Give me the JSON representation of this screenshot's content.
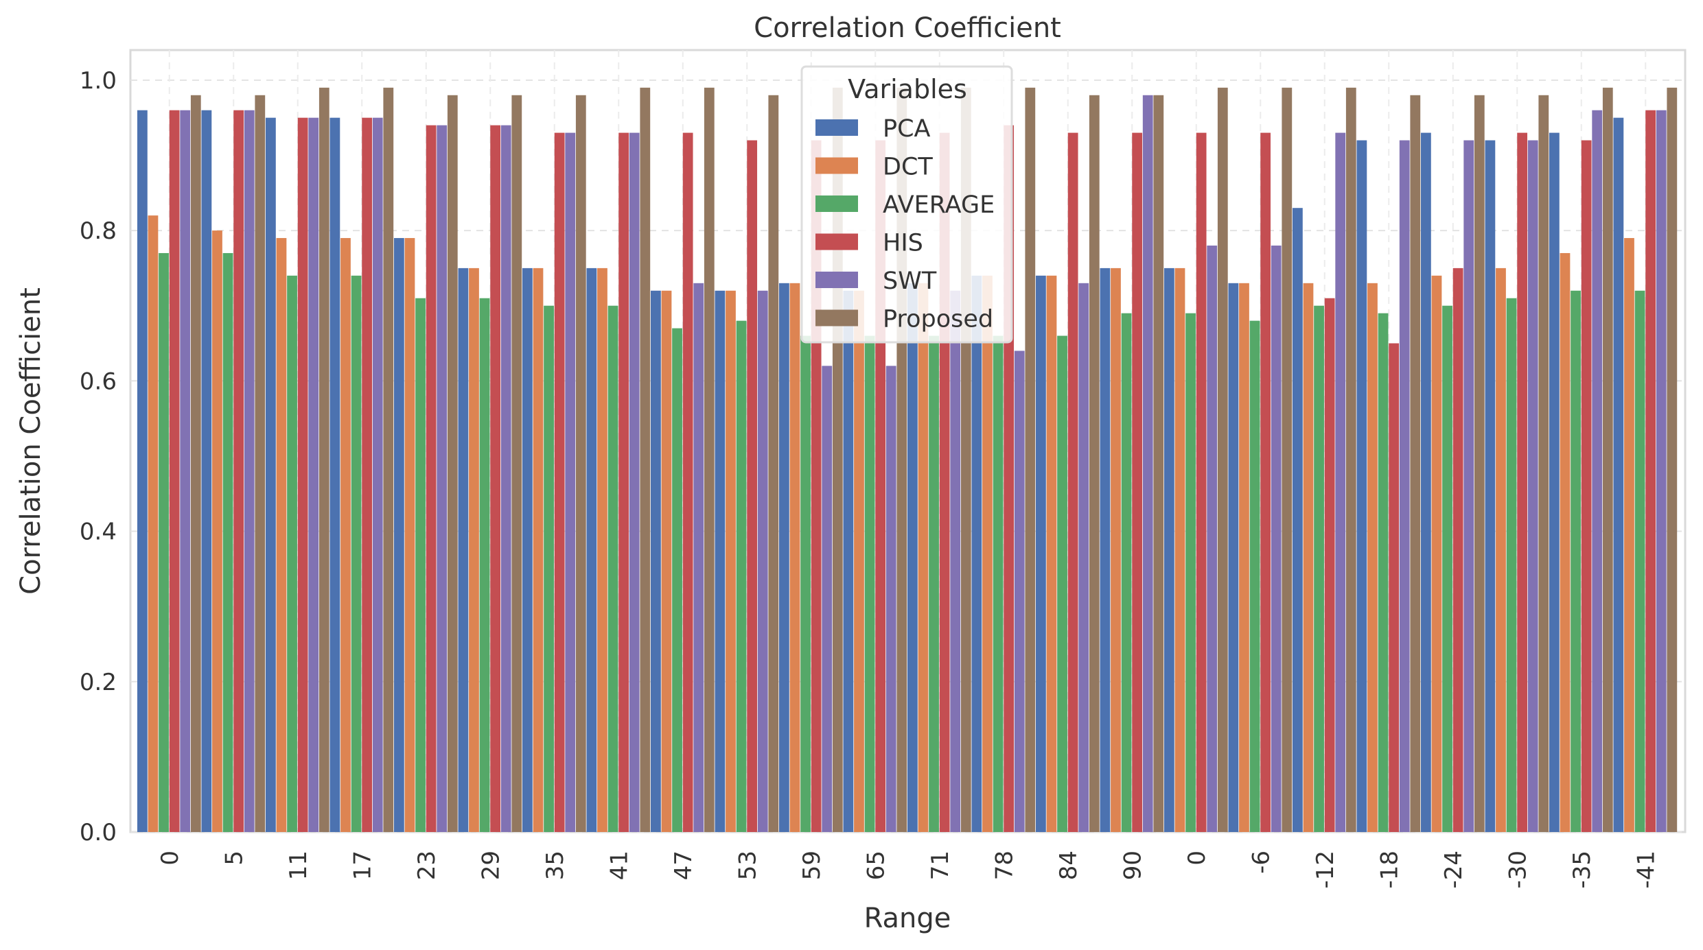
{
  "chart_data": {
    "type": "bar",
    "title": "Correlation Coefficient",
    "xlabel": "Range",
    "ylabel": "Correlation Coefficient",
    "ylim": [
      0,
      1.04
    ],
    "yticks": [
      "0.0",
      "0.2",
      "0.4",
      "0.6",
      "0.8",
      "1.0"
    ],
    "ytick_values": [
      0,
      0.2,
      0.4,
      0.6,
      0.8,
      1.0
    ],
    "grid": true,
    "legend": {
      "title": "Variables",
      "position": "upper-center"
    },
    "categories": [
      "0",
      "5",
      "11",
      "17",
      "23",
      "29",
      "35",
      "41",
      "47",
      "53",
      "59",
      "65",
      "71",
      "78",
      "84",
      "90",
      "0",
      "-6",
      "-12",
      "-18",
      "-24",
      "-30",
      "-35",
      "-41"
    ],
    "series": [
      {
        "name": "PCA",
        "color": "#4c72b0",
        "values": [
          0.96,
          0.96,
          0.95,
          0.95,
          0.79,
          0.75,
          0.75,
          0.75,
          0.72,
          0.72,
          0.73,
          0.72,
          0.73,
          0.74,
          0.74,
          0.75,
          0.75,
          0.73,
          0.83,
          0.92,
          0.93,
          0.92,
          0.93,
          0.95
        ]
      },
      {
        "name": "DCT",
        "color": "#dd8452",
        "values": [
          0.82,
          0.8,
          0.79,
          0.79,
          0.79,
          0.75,
          0.75,
          0.75,
          0.72,
          0.72,
          0.73,
          0.72,
          0.73,
          0.74,
          0.74,
          0.75,
          0.75,
          0.73,
          0.73,
          0.73,
          0.74,
          0.75,
          0.77,
          0.79
        ]
      },
      {
        "name": "AVERAGE",
        "color": "#55a868",
        "values": [
          0.77,
          0.77,
          0.74,
          0.74,
          0.71,
          0.71,
          0.7,
          0.7,
          0.67,
          0.68,
          0.66,
          0.66,
          0.66,
          0.66,
          0.66,
          0.69,
          0.69,
          0.68,
          0.7,
          0.69,
          0.7,
          0.71,
          0.72,
          0.72
        ]
      },
      {
        "name": "HIS",
        "color": "#c44e52",
        "values": [
          0.96,
          0.96,
          0.95,
          0.95,
          0.94,
          0.94,
          0.93,
          0.93,
          0.93,
          0.92,
          0.92,
          0.92,
          0.93,
          0.94,
          0.93,
          0.93,
          0.93,
          0.93,
          0.71,
          0.65,
          0.75,
          0.93,
          0.92,
          0.96
        ]
      },
      {
        "name": "SWT",
        "color": "#8172b3",
        "values": [
          0.96,
          0.96,
          0.95,
          0.95,
          0.94,
          0.94,
          0.93,
          0.93,
          0.73,
          0.72,
          0.62,
          0.62,
          0.72,
          0.64,
          0.73,
          0.98,
          0.78,
          0.78,
          0.93,
          0.92,
          0.92,
          0.92,
          0.96,
          0.96
        ]
      },
      {
        "name": "Proposed",
        "color": "#937860",
        "values": [
          0.98,
          0.98,
          0.99,
          0.99,
          0.98,
          0.98,
          0.98,
          0.99,
          0.99,
          0.98,
          0.99,
          0.99,
          0.99,
          0.99,
          0.98,
          0.98,
          0.99,
          0.99,
          0.99,
          0.98,
          0.98,
          0.98,
          0.99,
          0.99
        ]
      }
    ]
  }
}
